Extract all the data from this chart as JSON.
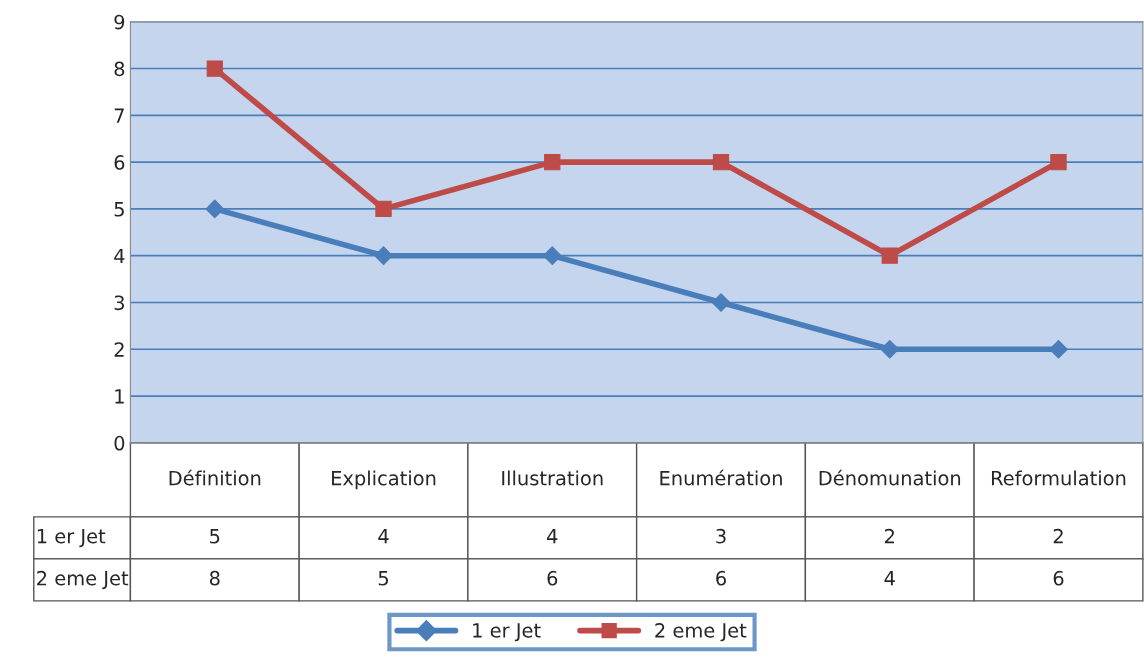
{
  "chart_data": {
    "type": "line",
    "categories": [
      "Définition",
      "Explication",
      "Illustration",
      "Enumération",
      "Dénomunation",
      "Reformulation"
    ],
    "series": [
      {
        "name": "1 er Jet",
        "color": "#4a7ebb",
        "marker": "diamond",
        "values": [
          5,
          4,
          4,
          3,
          2,
          2
        ]
      },
      {
        "name": "2 eme Jet",
        "color": "#be4b48",
        "marker": "square",
        "values": [
          8,
          5,
          6,
          6,
          4,
          6
        ]
      }
    ],
    "ylim": [
      0,
      9
    ],
    "yticks": [
      0,
      1,
      2,
      3,
      4,
      5,
      6,
      7,
      8,
      9
    ],
    "grid": "y",
    "legend": "bottom",
    "data_labels": true,
    "line_style": "solid"
  }
}
